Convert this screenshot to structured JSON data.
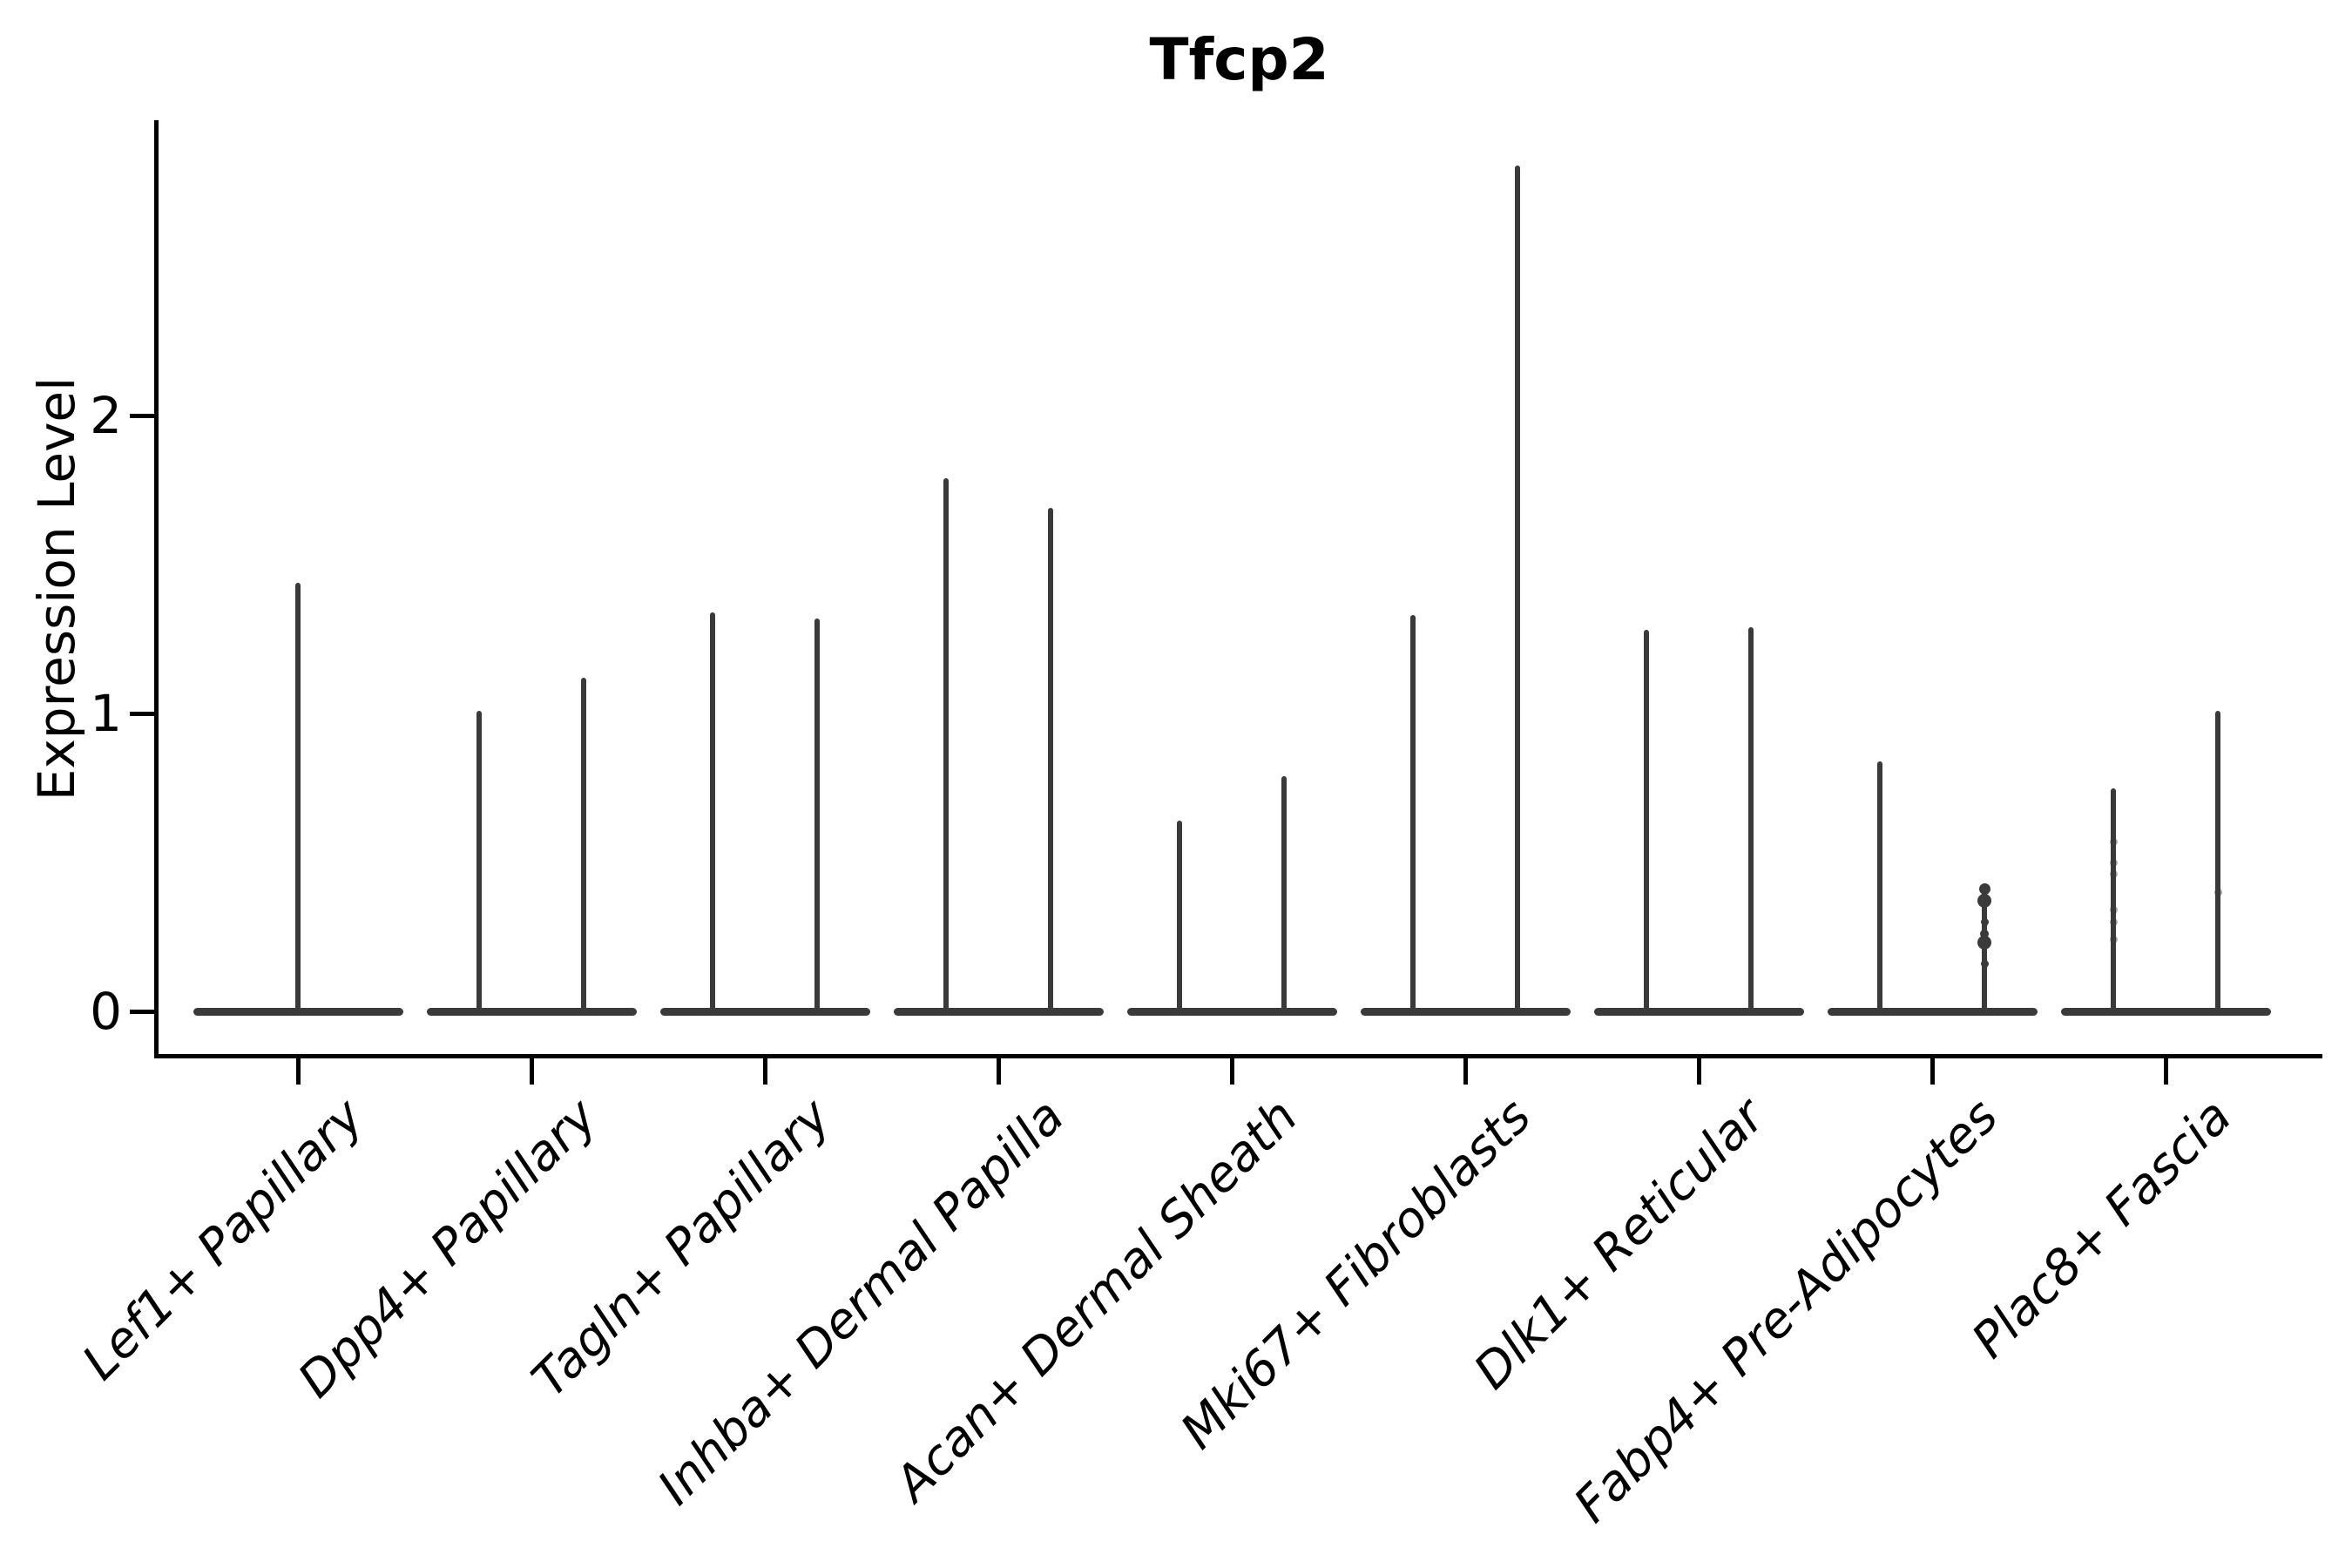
{
  "chart_data": {
    "type": "violin",
    "title": "Tfcp2",
    "xlabel": "",
    "ylabel": "Expression Level",
    "y_ticks": [
      0,
      1,
      2
    ],
    "ylim": [
      -0.15,
      2.99
    ],
    "grid": false,
    "legend": "none",
    "x_tick_rotation": 45,
    "line_color": "#3a3a3a",
    "axis_color": "#000000",
    "background_color": "#ffffff",
    "categories": [
      "Lef1+ Papillary",
      "Dpp4+ Papillary",
      "Tagln+ Papillary",
      "Inhba+ Dermal Papilla",
      "Acan+ Dermal Sheath",
      "Mki67+ Fibroblasts",
      "Dlk1+ Reticular",
      "Fabp4+ Pre-Adipocytes",
      "Plac8+ Fascia"
    ],
    "violins": [
      {
        "category": "Lef1+ Papillary",
        "spikes": [
          {
            "slot": "center",
            "max": 1.44
          }
        ]
      },
      {
        "category": "Dpp4+ Papillary",
        "spikes": [
          {
            "slot": "left",
            "max": 1.01
          },
          {
            "slot": "right",
            "max": 1.12
          }
        ]
      },
      {
        "category": "Tagln+ Papillary",
        "spikes": [
          {
            "slot": "left",
            "max": 1.34
          },
          {
            "slot": "right",
            "max": 1.32
          }
        ]
      },
      {
        "category": "Inhba+ Dermal Papilla",
        "spikes": [
          {
            "slot": "left",
            "max": 1.79
          },
          {
            "slot": "right",
            "max": 1.69
          }
        ]
      },
      {
        "category": "Acan+ Dermal Sheath",
        "spikes": [
          {
            "slot": "left",
            "max": 0.64
          },
          {
            "slot": "right",
            "max": 0.79
          }
        ]
      },
      {
        "category": "Mki67+ Fibroblasts",
        "spikes": [
          {
            "slot": "left",
            "max": 1.33
          },
          {
            "slot": "right",
            "max": 2.84
          }
        ]
      },
      {
        "category": "Dlk1+ Reticular",
        "spikes": [
          {
            "slot": "left",
            "max": 1.28
          },
          {
            "slot": "right",
            "max": 1.29
          }
        ]
      },
      {
        "category": "Fabp4+ Pre-Adipocytes",
        "spikes": [
          {
            "slot": "left",
            "max": 0.84
          },
          {
            "slot": "right",
            "max": 0.41,
            "dots": [
              0.41,
              0.37,
              0.3,
              0.26,
              0.23,
              0.16
            ],
            "dots_style": "solid"
          }
        ]
      },
      {
        "category": "Plac8+ Fascia",
        "spikes": [
          {
            "slot": "left",
            "max": 0.75,
            "dots": [
              0.57,
              0.5,
              0.46,
              0.34,
              0.3,
              0.24
            ],
            "dots_style": "faint"
          },
          {
            "slot": "right",
            "max": 1.01,
            "dots": [
              0.4
            ],
            "dots_style": "faint"
          }
        ]
      }
    ]
  }
}
